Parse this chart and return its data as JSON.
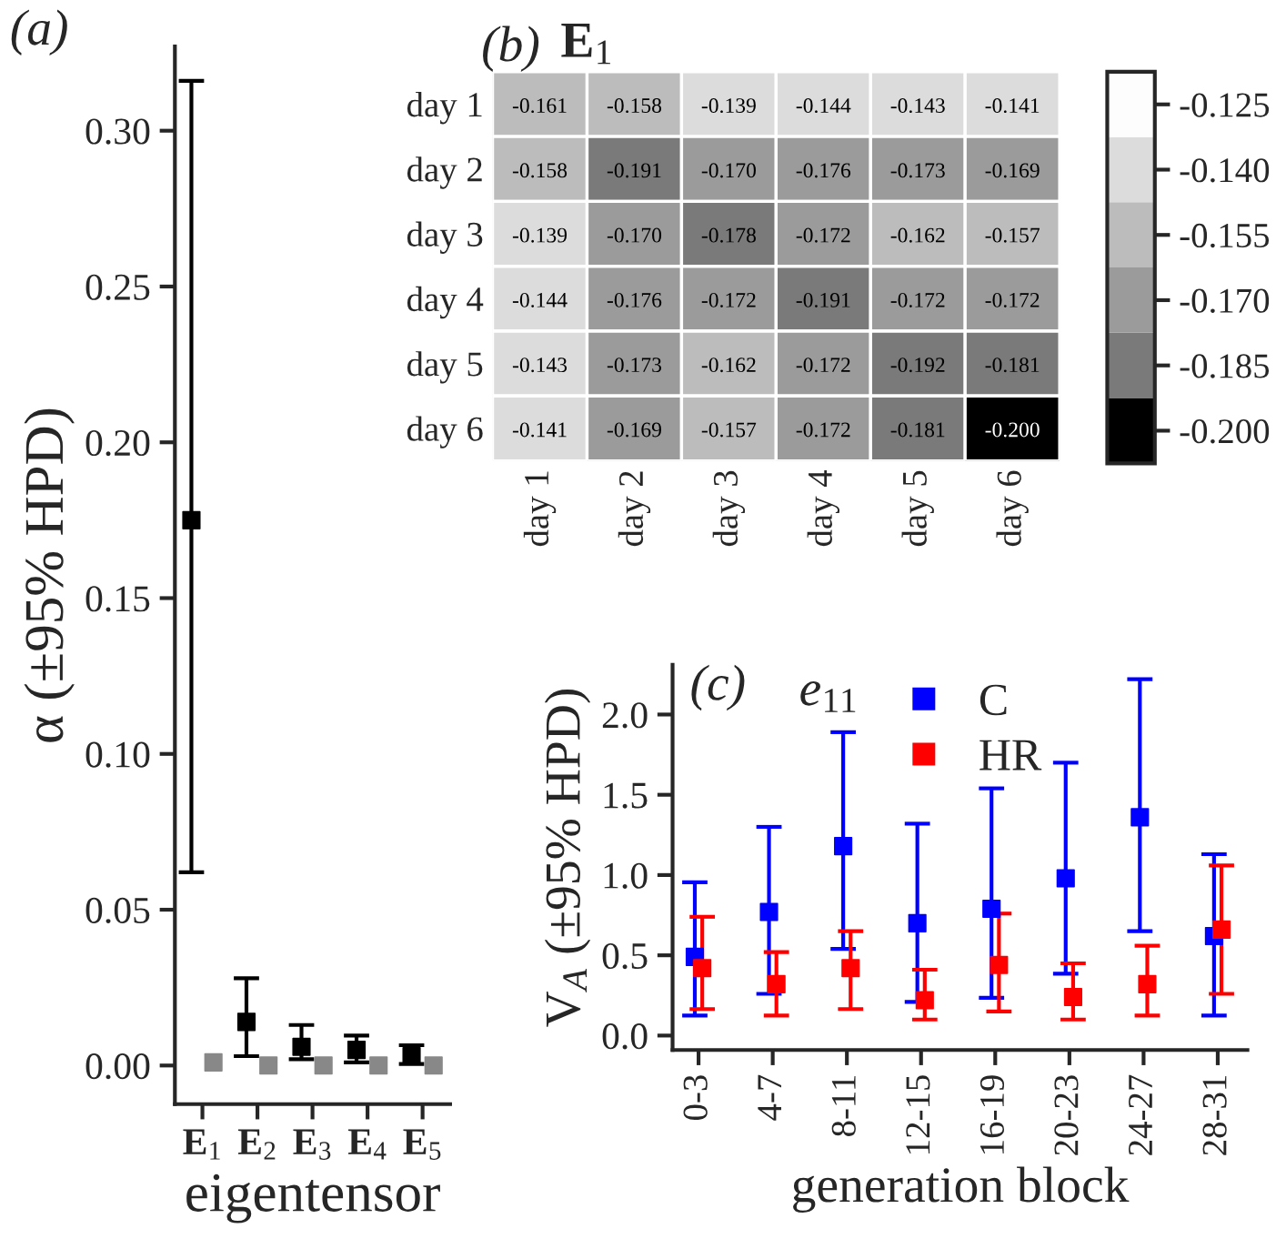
{
  "chart_data": [
    {
      "type": "scatter",
      "annotations": [
        "(a)"
      ],
      "xlabel": "eigentensor",
      "ylabel": "α (±95% HPD)",
      "categories": [
        "E$_{1}$",
        "E$_{2}$",
        "E$_{3}$",
        "E$_{4}$",
        "E$_{5}$"
      ],
      "marker": "square",
      "series": [
        {
          "color": "#000000",
          "values": [
            0.175,
            0.014,
            0.006,
            0.005,
            0.003
          ],
          "errors": [
            [
              0.062,
              0.316
            ],
            [
              0.003,
              0.028
            ],
            [
              0.002,
              0.013
            ],
            [
              0.001,
              0.0096
            ],
            [
              0.0005,
              0.0065
            ]
          ]
        },
        {
          "color": "#888888",
          "values": [
            0.001,
            0.0,
            0.0,
            0.0,
            0.0
          ]
        }
      ],
      "ylim": [
        -0.0124,
        0.327
      ],
      "yticks": [
        {
          "value": 0,
          "label": "0.00"
        },
        {
          "value": 0.05,
          "label": "0.05"
        },
        {
          "value": 0.1,
          "label": "0.10"
        },
        {
          "value": 0.15,
          "label": "0.15"
        },
        {
          "value": 0.2,
          "label": "0.20"
        },
        {
          "value": 0.25,
          "label": "0.25"
        },
        {
          "value": 0.3,
          "label": "0.30"
        }
      ],
      "grid": false
    },
    {
      "type": "heatmap",
      "annotations": [
        "(b)"
      ],
      "title": "E$_{1}$",
      "categories": [
        "day 1",
        "day 2",
        "day 3",
        "day 4",
        "day 5",
        "day 6"
      ],
      "y_categories": [
        "day 1",
        "day 2",
        "day 3",
        "day 4",
        "day 5",
        "day 6"
      ],
      "cells": [
        [
          -0.161,
          -0.158,
          -0.139,
          -0.144,
          -0.143,
          -0.141
        ],
        [
          -0.158,
          -0.191,
          -0.17,
          -0.176,
          -0.173,
          -0.169
        ],
        [
          -0.139,
          -0.17,
          -0.178,
          -0.172,
          -0.162,
          -0.157
        ],
        [
          -0.144,
          -0.176,
          -0.172,
          -0.191,
          -0.172,
          -0.172
        ],
        [
          -0.143,
          -0.173,
          -0.162,
          -0.172,
          -0.192,
          -0.181
        ],
        [
          -0.141,
          -0.169,
          -0.157,
          -0.172,
          -0.181,
          -0.2
        ]
      ],
      "cell_labels": [
        [
          "-0.161",
          "-0.158",
          "-0.139",
          "-0.144",
          "-0.143",
          "-0.141"
        ],
        [
          "-0.158",
          "-0.191",
          "-0.170",
          "-0.176",
          "-0.173",
          "-0.169"
        ],
        [
          "-0.139",
          "-0.170",
          "-0.178",
          "-0.172",
          "-0.162",
          "-0.157"
        ],
        [
          "-0.144",
          "-0.176",
          "-0.172",
          "-0.191",
          "-0.172",
          "-0.172"
        ],
        [
          "-0.143",
          "-0.173",
          "-0.162",
          "-0.172",
          "-0.192",
          "-0.181"
        ],
        [
          "-0.141",
          "-0.169",
          "-0.157",
          "-0.172",
          "-0.181",
          "-0.200"
        ]
      ],
      "clim": [
        -0.2075,
        -0.1175
      ],
      "cticks": [
        {
          "value": -0.2,
          "label": "-0.200"
        },
        {
          "value": -0.185,
          "label": "-0.185"
        },
        {
          "value": -0.17,
          "label": "-0.170"
        },
        {
          "value": -0.155,
          "label": "-0.155"
        },
        {
          "value": -0.14,
          "label": "-0.140"
        },
        {
          "value": -0.125,
          "label": "-0.125"
        }
      ]
    },
    {
      "type": "scatter",
      "annotations": [
        "(c)"
      ],
      "title": "e$_{11}$",
      "xlabel": "generation block",
      "ylabel": "V$_{A}$ (±95% HPD)",
      "categories": [
        "0-3",
        "4-7",
        "8-11",
        "12-15",
        "16-19",
        "20-23",
        "24-27",
        "28-31"
      ],
      "marker": "square",
      "legend": "top",
      "grid": false,
      "series": [
        {
          "name": "C",
          "color": "#0000ff",
          "values": [
            0.49,
            0.77,
            1.18,
            0.7,
            0.79,
            0.98,
            1.36,
            0.62
          ],
          "errors": [
            [
              0.125,
              0.955
            ],
            [
              0.26,
              1.3
            ],
            [
              0.54,
              1.89
            ],
            [
              0.21,
              1.32
            ],
            [
              0.235,
              1.54
            ],
            [
              0.385,
              1.7
            ],
            [
              0.65,
              2.22
            ],
            [
              0.125,
              1.13
            ]
          ]
        },
        {
          "name": "HR",
          "color": "#ff0000",
          "values": [
            0.42,
            0.32,
            0.42,
            0.22,
            0.44,
            0.24,
            0.32,
            0.66
          ],
          "errors": [
            [
              0.165,
              0.74
            ],
            [
              0.125,
              0.52
            ],
            [
              0.165,
              0.65
            ],
            [
              0.1,
              0.41
            ],
            [
              0.15,
              0.76
            ],
            [
              0.1,
              0.45
            ],
            [
              0.125,
              0.56
            ],
            [
              0.26,
              1.06
            ]
          ]
        }
      ],
      "ylim": [
        -0.09,
        2.31
      ],
      "yticks": [
        {
          "value": 0,
          "label": "0.0"
        },
        {
          "value": 0.5,
          "label": "0.5"
        },
        {
          "value": 1,
          "label": "1.0"
        },
        {
          "value": 1.5,
          "label": "1.5"
        },
        {
          "value": 2,
          "label": "2.0"
        }
      ]
    }
  ]
}
